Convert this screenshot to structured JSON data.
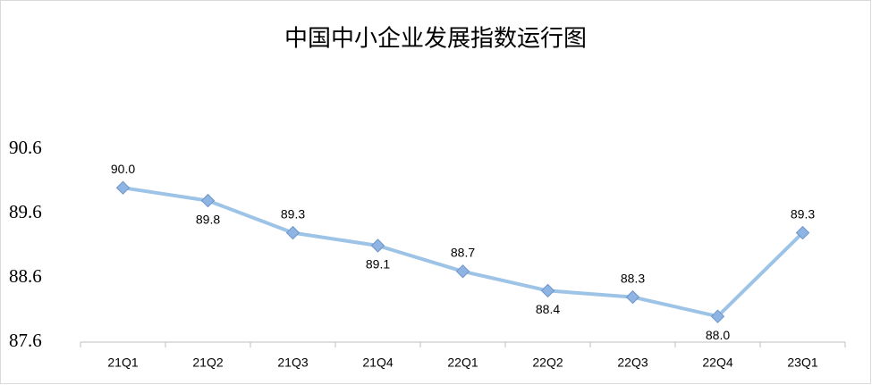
{
  "chart_data": {
    "type": "line",
    "title": "中国中小企业发展指数运行图",
    "categories": [
      "21Q1",
      "21Q2",
      "21Q3",
      "21Q4",
      "22Q1",
      "22Q2",
      "22Q3",
      "22Q4",
      "23Q1"
    ],
    "values": [
      90.0,
      89.8,
      89.3,
      89.1,
      88.7,
      88.4,
      88.3,
      88.0,
      89.3
    ],
    "value_labels": [
      "90.0",
      "89.8",
      "89.3",
      "89.1",
      "88.7",
      "88.4",
      "88.3",
      "88.0",
      "89.3"
    ],
    "color": "#9dc3e6",
    "marker_color": "#8db4e2",
    "ylim": [
      87.6,
      90.6
    ],
    "yticks": [
      87.6,
      88.6,
      89.6,
      90.6
    ]
  }
}
